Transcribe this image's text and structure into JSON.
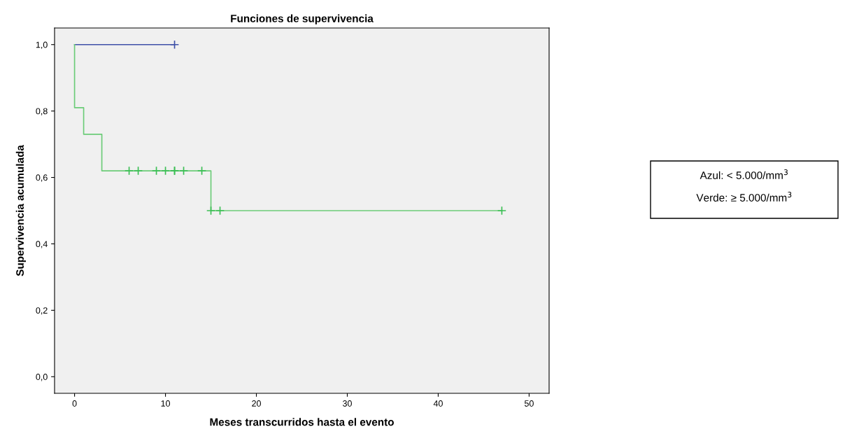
{
  "chart_data": {
    "type": "step",
    "title": "Funciones de supervivencia",
    "xlabel": "Meses transcurridos hasta el evento",
    "ylabel": "Supervivencia acumulada",
    "series": [
      {
        "color": "#3f51a8",
        "x": [
          0,
          11
        ],
        "values": [
          1.0,
          1.0
        ]
      },
      {
        "color": "#6ccc78",
        "x": [
          0,
          0,
          1,
          3,
          15,
          47
        ],
        "values": [
          1.0,
          0.81,
          0.73,
          0.62,
          0.5,
          0.5
        ]
      },
      {
        "type": "scatter",
        "marker": "cross",
        "color": "#3f51a8",
        "x": [
          11
        ],
        "values": [
          1.0
        ]
      },
      {
        "type": "scatter",
        "marker": "cross",
        "color": "#3cbf55",
        "x": [
          6,
          7,
          9,
          10,
          11,
          11,
          12,
          14,
          15,
          16,
          47
        ],
        "values": [
          0.62,
          0.62,
          0.62,
          0.62,
          0.62,
          0.62,
          0.62,
          0.62,
          0.5,
          0.5,
          0.5
        ]
      }
    ],
    "xlim": [
      -2.2,
      52.2
    ],
    "ylim": [
      -0.05,
      1.05
    ],
    "xticks": [
      0,
      10,
      20,
      30,
      40,
      50
    ],
    "yticks": [
      {
        "value": 0,
        "label": "0,0"
      },
      {
        "value": 0.2,
        "label": "0,2"
      },
      {
        "value": 0.4,
        "label": "0,4"
      },
      {
        "value": 0.6,
        "label": "0,6"
      },
      {
        "value": 0.8,
        "label": "0,8"
      },
      {
        "value": 1.0,
        "label": "1,0"
      }
    ],
    "grid": false,
    "annotations": [
      "Azul: < 5.000/mm$^{3}$",
      "Verde: ≥ 5.000/mm$^{3}$"
    ]
  }
}
